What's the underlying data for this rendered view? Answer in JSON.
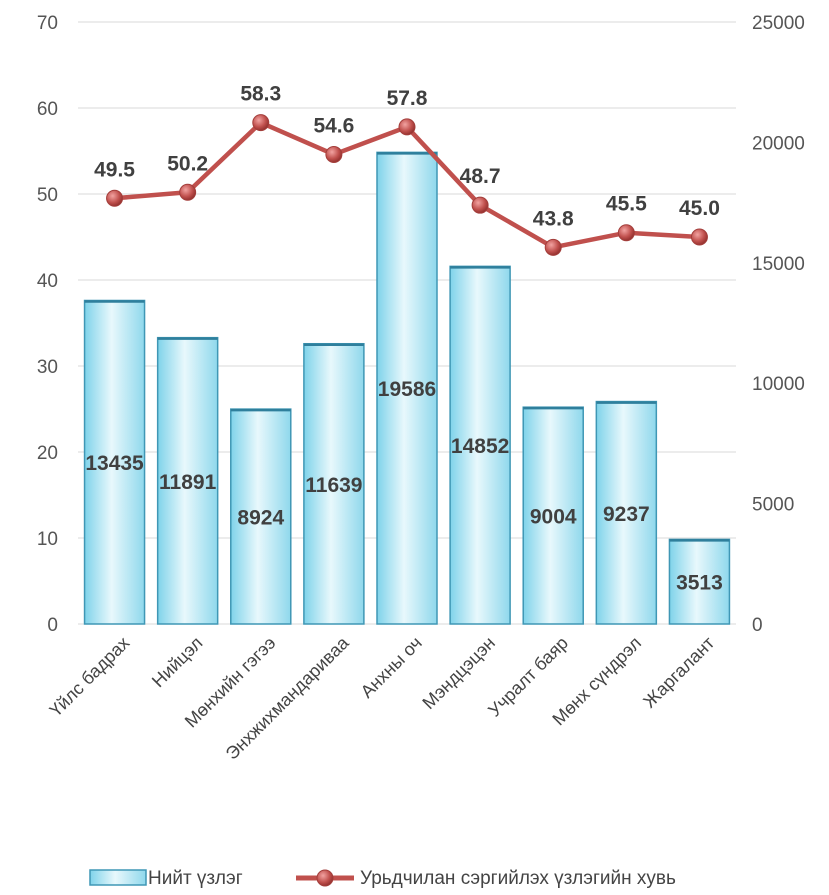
{
  "chart_data": {
    "type": "bar",
    "categories": [
      "Үйлс бадрах",
      "Нийцэл",
      "Мөнхийн гэгээ",
      "Энхжихмандариваа",
      "Анхны оч",
      "Мэндцэцэн",
      "Учралт баяр",
      "Мөнх сүндрэл",
      "Жаргалант"
    ],
    "series": [
      {
        "name": "Нийт үзлэг",
        "type": "bar",
        "axis": "right",
        "values": [
          13435,
          11891,
          8924,
          11639,
          19586,
          14852,
          9004,
          9237,
          3513
        ],
        "labels": [
          "13435",
          "11891",
          "8924",
          "11639",
          "19586",
          "14852",
          "9004",
          "9237",
          "3513"
        ],
        "color": "#bfeaf5"
      },
      {
        "name": "Урьдчилан сэргийлэх үзлэгийн хувь",
        "type": "line",
        "axis": "left",
        "values": [
          49.5,
          50.2,
          58.3,
          54.6,
          57.8,
          48.7,
          43.8,
          45.5,
          45.0
        ],
        "labels": [
          "49.5",
          "50.2",
          "58.3",
          "54.6",
          "57.8",
          "48.7",
          "43.8",
          "45.5",
          "45.0"
        ],
        "color": "#c0504d"
      }
    ],
    "y_left": {
      "min": 0,
      "max": 70,
      "ticks": [
        "0",
        "10",
        "20",
        "30",
        "40",
        "50",
        "60",
        "70"
      ]
    },
    "y_right": {
      "min": 0,
      "max": 25000,
      "ticks": [
        "0",
        "5000",
        "10000",
        "15000",
        "20000",
        "25000"
      ]
    },
    "grid": true,
    "legend_position": "bottom"
  }
}
